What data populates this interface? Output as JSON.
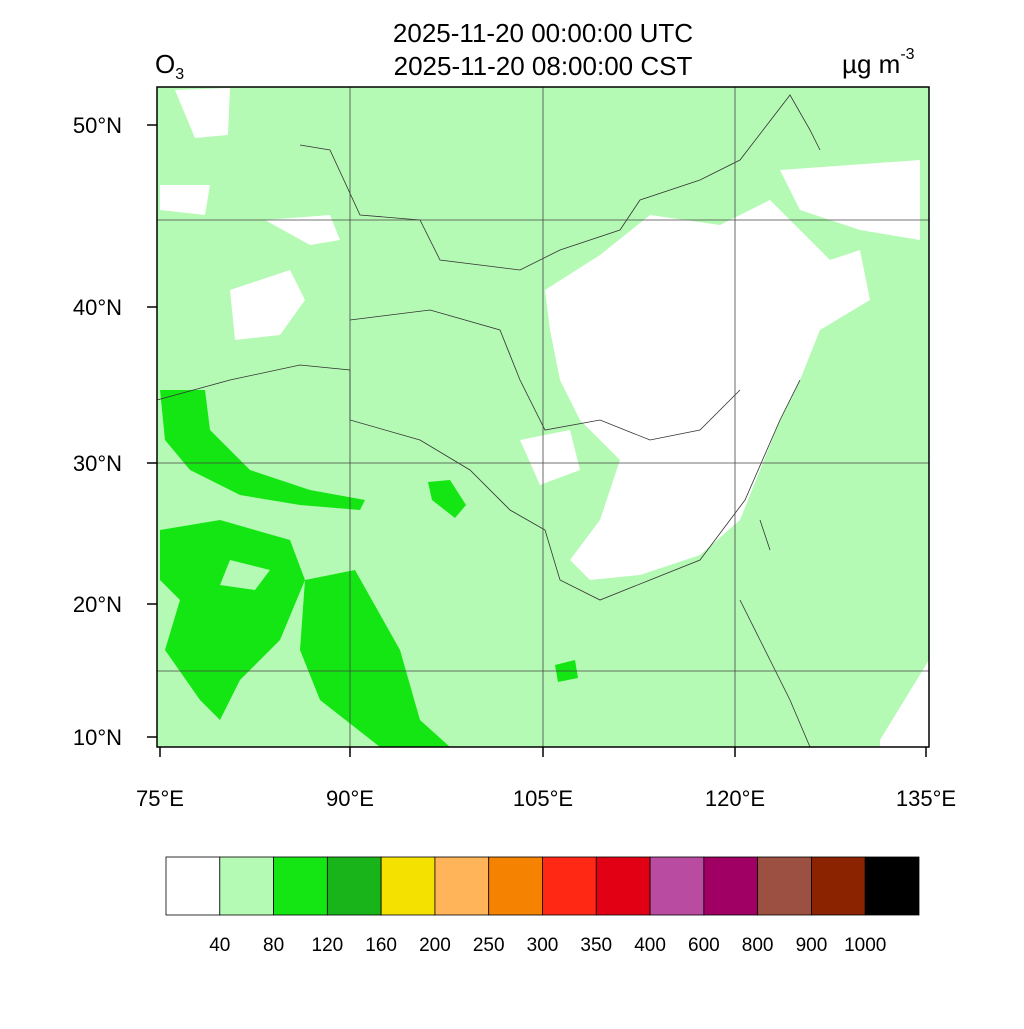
{
  "header": {
    "title_lines": [
      "2025-11-20 00:00:00 UTC",
      "2025-11-20 08:00:00 CST"
    ],
    "species": {
      "text": "O",
      "subscript": "3"
    },
    "units": {
      "text": "µg m",
      "superscript": "-3"
    }
  },
  "map": {
    "lat_labels": [
      "50°N",
      "40°N",
      "30°N",
      "20°N",
      "10°N"
    ],
    "lon_labels": [
      "75°E",
      "90°E",
      "105°E",
      "120°E",
      "135°E"
    ]
  },
  "colorbar": {
    "colors": [
      "#ffffff",
      "#b4fab4",
      "#14e614",
      "#19b419",
      "#f5e100",
      "#ffb45a",
      "#f58200",
      "#ff2814",
      "#e10014",
      "#b94ba0",
      "#a00064",
      "#9b5041",
      "#8c2300",
      "#000000"
    ],
    "levels": [
      40,
      80,
      120,
      160,
      200,
      250,
      300,
      350,
      400,
      600,
      800,
      900,
      1000
    ]
  }
}
